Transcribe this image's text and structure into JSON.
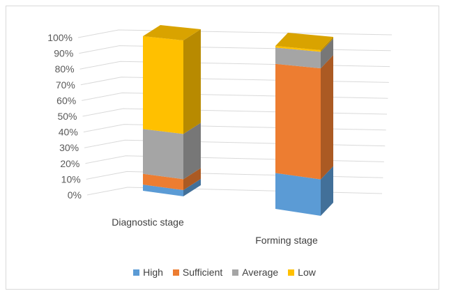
{
  "chart_data": {
    "type": "bar",
    "stacked": true,
    "percent_stacked": true,
    "three_d": true,
    "categories": [
      "Diagnostic stage",
      "Forming stage"
    ],
    "series": [
      {
        "name": "High",
        "color": "#5B9BD5",
        "values": [
          4,
          22
        ]
      },
      {
        "name": "Sufficient",
        "color": "#ED7D31",
        "values": [
          7,
          67
        ]
      },
      {
        "name": "Average",
        "color": "#A5A5A5",
        "values": [
          29,
          10
        ]
      },
      {
        "name": "Low",
        "color": "#FFC000",
        "values": [
          60,
          1
        ]
      }
    ],
    "y_ticks": [
      "0%",
      "10%",
      "20%",
      "30%",
      "40%",
      "50%",
      "60%",
      "70%",
      "80%",
      "90%",
      "100%"
    ],
    "ylim": [
      0,
      100
    ],
    "grid": true,
    "legend_position": "bottom"
  }
}
